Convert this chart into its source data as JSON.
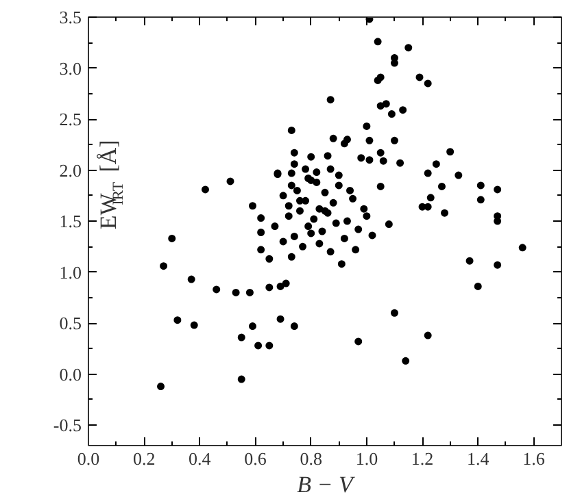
{
  "chart_data": {
    "type": "scatter",
    "xlabel": "B − V",
    "ylabel": "EW$_{IRT}$ [Å]",
    "xlim": [
      0.0,
      1.7
    ],
    "ylim": [
      -0.7,
      3.5
    ],
    "xticks": [
      {
        "value": 0.0,
        "label": "0.0"
      },
      0.2,
      0.4,
      0.6,
      0.8,
      {
        "value": 1.0,
        "label": "1.0"
      },
      1.2,
      1.4,
      1.6
    ],
    "yticks": [
      -0.5,
      {
        "value": 0.0,
        "label": "0.0"
      },
      0.5,
      {
        "value": 1.0,
        "label": "1.0"
      },
      1.5,
      {
        "value": 2.0,
        "label": "2.0"
      },
      2.5,
      {
        "value": 3.0,
        "label": "3.0"
      },
      3.5
    ],
    "grid": false,
    "marker": "circle",
    "series": [
      {
        "color": "#000000",
        "x": [
          1.01,
          1.04,
          1.15,
          1.1,
          1.1,
          1.19,
          1.22,
          1.04,
          1.05,
          0.87,
          1.05,
          1.07,
          1.09,
          1.13,
          1.0,
          0.73,
          0.88,
          0.92,
          0.93,
          1.01,
          1.05,
          1.1,
          1.3,
          0.74,
          0.86,
          0.8,
          0.98,
          1.01,
          1.06,
          1.12,
          1.25,
          0.74,
          0.68,
          0.73,
          0.82,
          0.87,
          1.22,
          1.33,
          0.73,
          1.05,
          1.27,
          1.41,
          1.47,
          1.23,
          1.41,
          1.2,
          1.22,
          1.28,
          1.47,
          1.47,
          0.3,
          0.42,
          0.51,
          0.59,
          0.62,
          0.68,
          0.78,
          0.62,
          0.27,
          0.37,
          0.46,
          0.32,
          0.38,
          0.55,
          0.61,
          0.59,
          0.69,
          0.65,
          0.55,
          0.26,
          0.53,
          0.58,
          0.65,
          0.71,
          0.62,
          0.65,
          0.73,
          1.37,
          1.47,
          1.56,
          1.4,
          1.1,
          0.74,
          1.22,
          1.14,
          0.97,
          0.91,
          0.69,
          0.7,
          0.75,
          0.78,
          0.8,
          0.83,
          0.85,
          0.88,
          0.9,
          0.95,
          0.72,
          0.76,
          0.79,
          0.81,
          0.84,
          0.86,
          0.89,
          0.93,
          0.97,
          1.0,
          0.7,
          0.74,
          0.77,
          0.8,
          0.83,
          0.87,
          0.92,
          0.96,
          1.02,
          0.67,
          0.72,
          0.76,
          0.79,
          0.82,
          0.85,
          0.9,
          0.94,
          0.99,
          1.08
        ],
        "values": [
          3.48,
          3.26,
          3.2,
          3.1,
          3.05,
          2.91,
          2.85,
          2.88,
          2.91,
          2.69,
          2.63,
          2.65,
          2.55,
          2.59,
          2.43,
          2.39,
          2.31,
          2.26,
          2.3,
          2.29,
          2.17,
          2.29,
          2.18,
          2.17,
          2.14,
          2.13,
          2.12,
          2.1,
          2.09,
          2.07,
          2.06,
          2.06,
          1.97,
          1.97,
          1.98,
          2.01,
          1.97,
          1.95,
          1.85,
          1.84,
          1.84,
          1.85,
          1.81,
          1.73,
          1.71,
          1.64,
          1.64,
          1.58,
          1.55,
          1.5,
          1.33,
          1.81,
          1.89,
          1.65,
          1.53,
          1.96,
          2.01,
          1.39,
          1.06,
          0.93,
          0.83,
          0.53,
          0.48,
          0.36,
          0.28,
          0.47,
          0.54,
          0.28,
          -0.05,
          -0.12,
          0.8,
          0.8,
          0.85,
          0.89,
          1.22,
          1.13,
          1.15,
          1.11,
          1.07,
          1.24,
          0.86,
          0.6,
          0.47,
          0.38,
          0.13,
          0.32,
          1.08,
          0.86,
          1.75,
          1.8,
          1.7,
          1.9,
          1.62,
          1.78,
          1.68,
          1.85,
          1.72,
          1.55,
          1.6,
          1.45,
          1.52,
          1.4,
          1.58,
          1.48,
          1.5,
          1.42,
          1.55,
          1.3,
          1.35,
          1.25,
          1.38,
          1.28,
          1.2,
          1.33,
          1.22,
          1.36,
          1.45,
          1.65,
          1.7,
          1.92,
          1.88,
          1.6,
          1.95,
          1.8,
          1.62,
          1.47
        ]
      }
    ]
  }
}
